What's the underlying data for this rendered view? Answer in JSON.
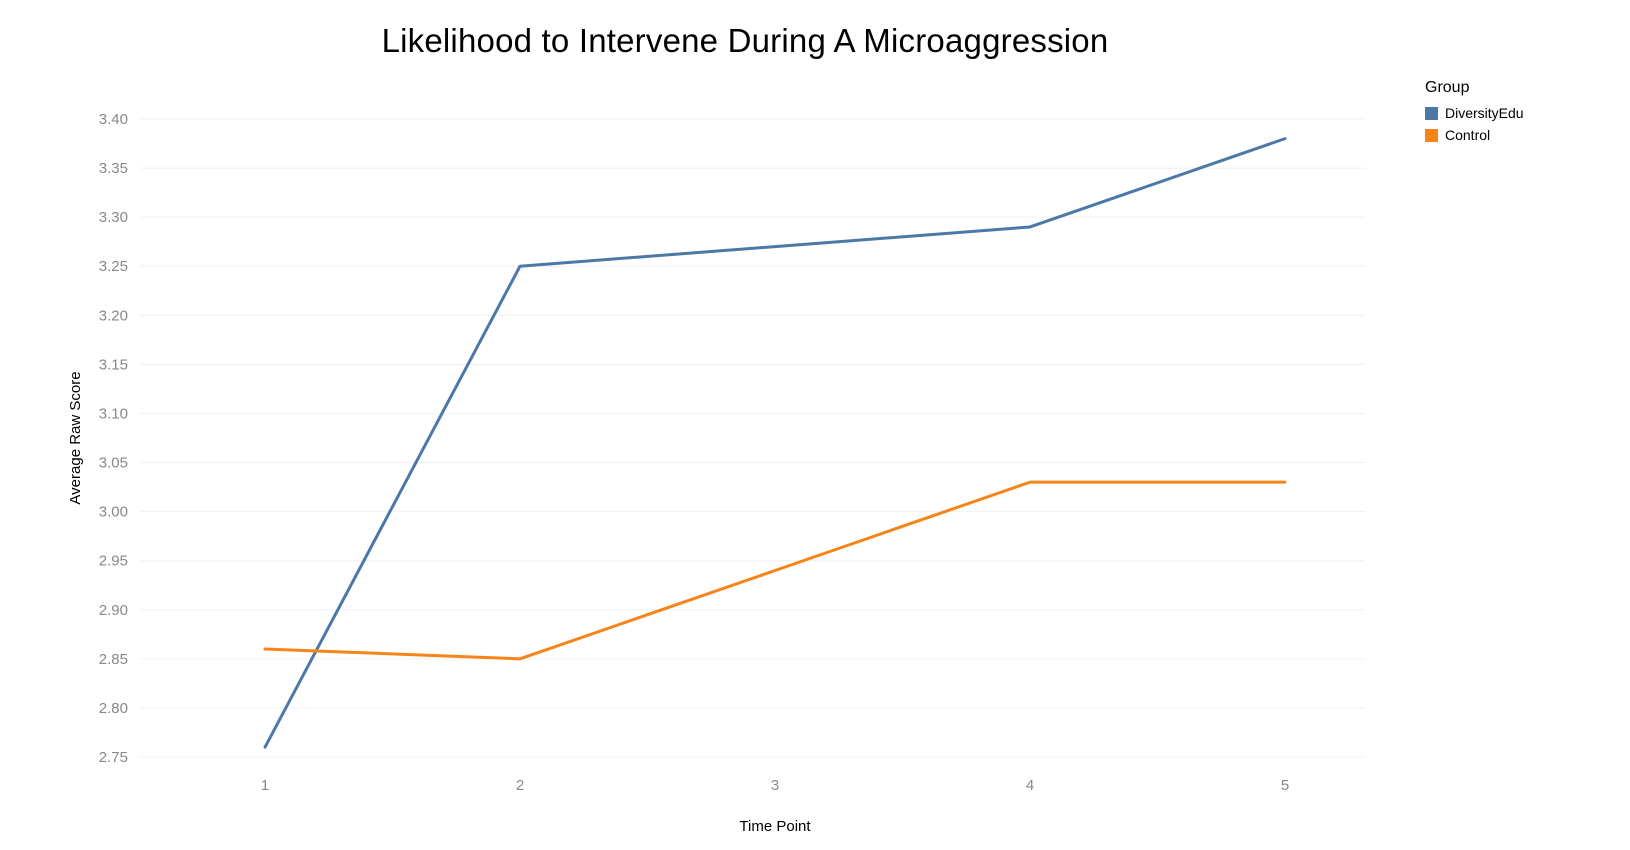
{
  "page": {
    "background": "#ffffff"
  },
  "chart_data": {
    "type": "line",
    "title": "Likelihood to Intervene During A Microaggression",
    "xlabel": "Time Point",
    "ylabel": "Average Raw Score",
    "x": [
      1,
      2,
      3,
      4,
      5
    ],
    "xticks": [
      "1",
      "2",
      "3",
      "4",
      "5"
    ],
    "yticks": [
      "2.75",
      "2.80",
      "2.85",
      "2.90",
      "2.95",
      "3.00",
      "3.05",
      "3.10",
      "3.15",
      "3.20",
      "3.25",
      "3.30",
      "3.35",
      "3.40"
    ],
    "ylim": [
      2.75,
      3.4
    ],
    "ytick_step": 0.05,
    "grid": true,
    "series": [
      {
        "name": "DiversityEdu",
        "color": "#4c78a8",
        "values": [
          2.76,
          3.25,
          3.27,
          3.29,
          3.38
        ]
      },
      {
        "name": "Control",
        "color": "#f58518",
        "values": [
          2.86,
          2.85,
          2.94,
          3.03,
          3.03
        ]
      }
    ],
    "legend": {
      "title": "Group",
      "position": "top-right"
    },
    "colors": {
      "gridline": "#f0f0f0",
      "tick_label": "#888888",
      "axis_title": "#000000",
      "title": "#000000"
    }
  }
}
